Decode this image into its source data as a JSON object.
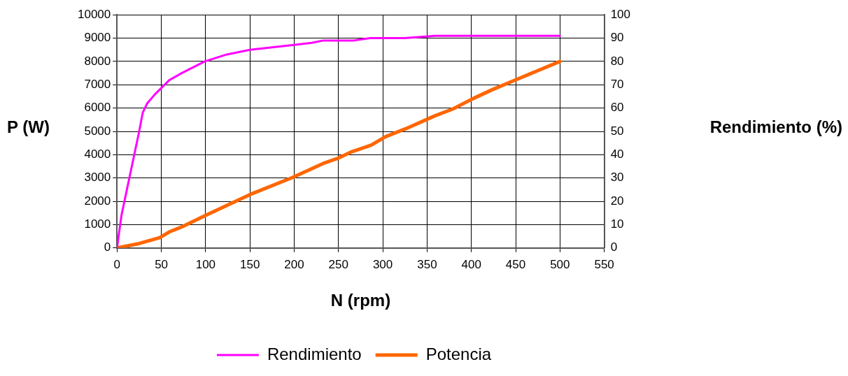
{
  "chart_data": {
    "type": "line",
    "xlabel": "N (rpm)",
    "ylabel": "P (W)",
    "y2label": "Rendimiento (%)",
    "xlim": [
      0,
      550
    ],
    "xticks": [
      0,
      50,
      100,
      150,
      200,
      250,
      300,
      350,
      400,
      450,
      500,
      550
    ],
    "ylim": [
      0,
      10000
    ],
    "yticks": [
      0,
      1000,
      2000,
      3000,
      4000,
      5000,
      6000,
      7000,
      8000,
      9000,
      10000
    ],
    "y2lim": [
      0,
      100
    ],
    "y2ticks": [
      0,
      10,
      20,
      30,
      40,
      50,
      60,
      70,
      80,
      90,
      100
    ],
    "grid": true,
    "legend": "bottom",
    "marker": "none",
    "line_style": "solid",
    "series": [
      {
        "name": "Potencia",
        "color": "#ff6600",
        "x": [
          0,
          25,
          48,
          59,
          73,
          99,
          150,
          198,
          233,
          249,
          265,
          287,
          303,
          325,
          359,
          379,
          401,
          423,
          450,
          500
        ],
        "values": [
          0,
          190,
          440,
          690,
          900,
          1380,
          2290,
          3020,
          3630,
          3840,
          4130,
          4410,
          4770,
          5100,
          5670,
          5960,
          6390,
          6780,
          7210,
          8000
        ]
      },
      {
        "name": "Rendimiento",
        "color": "#ff00ff",
        "axis": "y2",
        "x": [
          0,
          5,
          25,
          29,
          34,
          43,
          59,
          73,
          99,
          124,
          150,
          198,
          220,
          233,
          267,
          286,
          325,
          359,
          500
        ],
        "values": [
          0,
          14,
          50,
          58,
          62,
          66,
          72,
          75,
          80,
          83,
          85,
          87,
          88,
          89,
          89,
          90,
          90,
          91,
          91
        ]
      }
    ]
  }
}
